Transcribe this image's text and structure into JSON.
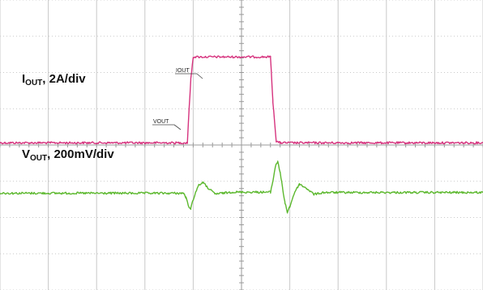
{
  "chart_data": {
    "type": "line",
    "title": "",
    "xlabel": "",
    "ylabel": "",
    "grid": true,
    "grid_divisions": {
      "x": 10,
      "y": 8
    },
    "xlim": [
      0,
      10
    ],
    "ylim": [
      -4,
      4
    ],
    "labels": {
      "iout": {
        "main": "I",
        "sub": "OUT",
        "rest": ", 2A/div"
      },
      "vout": {
        "main": "V",
        "sub": "OUT",
        "rest": ", 200mV/div"
      }
    },
    "trace_tags": {
      "iout": "IOUT",
      "vout": "VOUT"
    },
    "series": [
      {
        "name": "IOUT",
        "color": "#d6337e",
        "x": [
          0,
          3.88,
          3.9,
          3.95,
          4.0,
          5.6,
          5.65,
          5.72,
          5.8,
          10
        ],
        "y": [
          0.06,
          0.06,
          0.6,
          1.8,
          2.43,
          2.43,
          1.2,
          0.1,
          0.06,
          0.06
        ]
      },
      {
        "name": "VOUT",
        "color": "#5cb82e",
        "x": [
          0,
          3.8,
          3.85,
          3.9,
          3.95,
          4.0,
          4.1,
          4.2,
          4.3,
          4.45,
          4.6,
          4.8,
          5.0,
          5.6,
          5.65,
          5.7,
          5.75,
          5.8,
          5.85,
          5.9,
          5.95,
          6.0,
          6.1,
          6.2,
          6.35,
          6.5,
          6.7,
          10
        ],
        "y": [
          -1.33,
          -1.33,
          -1.45,
          -1.68,
          -1.75,
          -1.5,
          -1.13,
          -1.03,
          -1.18,
          -1.35,
          -1.33,
          -1.3,
          -1.3,
          -1.3,
          -1.0,
          -0.6,
          -0.45,
          -0.75,
          -1.2,
          -1.6,
          -1.85,
          -1.7,
          -1.3,
          -1.08,
          -1.2,
          -1.36,
          -1.31,
          -1.31
        ]
      }
    ]
  }
}
